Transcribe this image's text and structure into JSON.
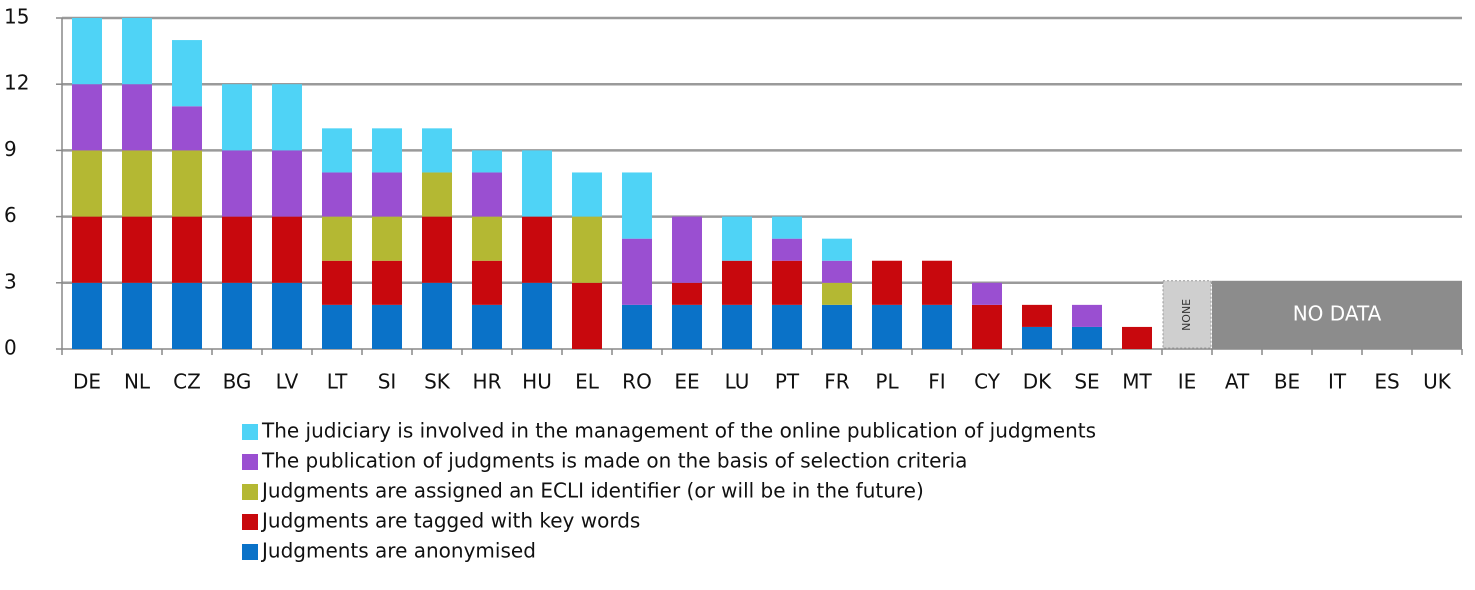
{
  "chart_data": {
    "type": "stacked_bar",
    "categories": [
      "DE",
      "NL",
      "CZ",
      "BG",
      "LV",
      "LT",
      "SI",
      "SK",
      "HR",
      "HU",
      "EL",
      "RO",
      "EE",
      "LU",
      "PT",
      "FR",
      "PL",
      "FI",
      "CY",
      "DK",
      "SE",
      "MT",
      "IE",
      "AT",
      "BE",
      "IT",
      "ES",
      "UK"
    ],
    "series": [
      {
        "name": "Judgments are anonymised",
        "color": "#0a72c8",
        "values": [
          3,
          3,
          3,
          3,
          3,
          2,
          2,
          3,
          2,
          3,
          0,
          2,
          2,
          2,
          2,
          2,
          2,
          2,
          0,
          1,
          1,
          0,
          0,
          null,
          null,
          null,
          null,
          null
        ]
      },
      {
        "name": "Judgments are tagged with key words",
        "color": "#c8080d",
        "values": [
          3,
          3,
          3,
          3,
          3,
          2,
          2,
          3,
          2,
          3,
          3,
          0,
          1,
          2,
          2,
          0,
          2,
          2,
          2,
          1,
          0,
          1,
          0,
          null,
          null,
          null,
          null,
          null
        ]
      },
      {
        "name": "Judgments are assigned an ECLI identifier (or will be in the future)",
        "color": "#b4b833",
        "values": [
          3,
          3,
          3,
          0,
          0,
          2,
          2,
          2,
          2,
          0,
          3,
          0,
          0,
          0,
          0,
          1,
          0,
          0,
          0,
          0,
          0,
          0,
          0,
          null,
          null,
          null,
          null,
          null
        ]
      },
      {
        "name": "The publication of judgments is made on the basis of selection criteria",
        "color": "#9a4fd1",
        "values": [
          3,
          3,
          2,
          3,
          3,
          2,
          2,
          0,
          2,
          0,
          0,
          3,
          3,
          0,
          1,
          1,
          0,
          0,
          1,
          0,
          1,
          0,
          0,
          null,
          null,
          null,
          null,
          null
        ]
      },
      {
        "name": "The judiciary is involved in the management of the online publication of judgments",
        "color": "#4fd3f6",
        "values": [
          3,
          3,
          3,
          3,
          3,
          2,
          2,
          2,
          1,
          3,
          2,
          3,
          0,
          2,
          1,
          1,
          0,
          0,
          0,
          0,
          0,
          0,
          0,
          null,
          null,
          null,
          null,
          null
        ]
      }
    ],
    "annotations": [
      "NONE",
      "NO DATA"
    ],
    "ylim": [
      0,
      15
    ],
    "yticks": [
      0,
      3,
      6,
      9,
      12,
      15
    ],
    "grid": true
  }
}
